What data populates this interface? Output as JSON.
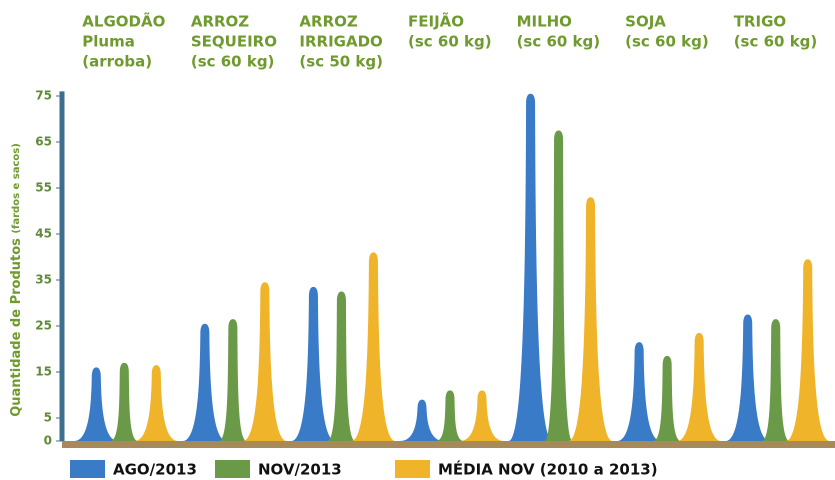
{
  "chart_data": {
    "type": "bar",
    "categories": [
      [
        "ALGODÃO",
        "Pluma",
        "(arroba)"
      ],
      [
        "ARROZ",
        "SEQUEIRO",
        "(sc 60 kg)"
      ],
      [
        "ARROZ",
        "IRRIGADO",
        "(sc 50 kg)"
      ],
      [
        "FEIJÃO",
        "(sc 60 kg)"
      ],
      [
        "MILHO",
        "(sc 60 kg)"
      ],
      [
        "SOJA",
        "(sc 60 kg)"
      ],
      [
        "TRIGO",
        "(sc 60 kg)"
      ]
    ],
    "series": [
      {
        "name": "AGO/2013",
        "color": "#3a7bc8",
        "values": [
          16,
          25.5,
          33.5,
          9,
          75.5,
          21.5,
          27.5
        ]
      },
      {
        "name": "NOV/2013",
        "color": "#6a9a48",
        "values": [
          17,
          26.5,
          32.5,
          11,
          67.5,
          18.5,
          26.5
        ]
      },
      {
        "name": "MÉDIA NOV (2010 a 2013)",
        "color": "#f0b42a",
        "values": [
          16.5,
          34.5,
          41,
          11,
          53,
          23.5,
          39.5
        ]
      }
    ],
    "y_label": "Quantidade de Produtos",
    "y_label_unit": "(fardos e sacos)",
    "ylim": [
      0,
      76
    ],
    "yticks": [
      0,
      5,
      15,
      25,
      35,
      45,
      55,
      65,
      75
    ],
    "grid": false
  }
}
